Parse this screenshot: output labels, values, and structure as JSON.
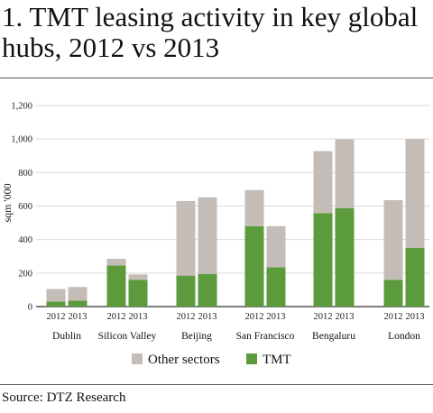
{
  "page": {
    "title": "1. TMT leasing activity in key global hubs, 2012 vs 2013",
    "source": "Source: DTZ Research"
  },
  "chart_data": {
    "type": "bar",
    "stacked": true,
    "title": "1. TMT leasing activity in key global hubs, 2012 vs 2013",
    "ylabel": "sqm '000",
    "ylim": [
      0,
      1200
    ],
    "yticks": [
      0,
      200,
      400,
      600,
      800,
      1000,
      1200
    ],
    "ytick_labels": [
      "0",
      "200",
      "400",
      "600",
      "800",
      "1,000",
      "1,200"
    ],
    "grid": true,
    "legend": "bottom",
    "groups": [
      "Dublin",
      "Silicon Valley",
      "Beijing",
      "San Francisco",
      "Bengaluru",
      "London"
    ],
    "years": [
      "2012",
      "2013"
    ],
    "series": [
      {
        "name": "Other sectors",
        "color": "#c4bdb7",
        "values": [
          [
            75,
            82
          ],
          [
            40,
            32
          ],
          [
            445,
            457
          ],
          [
            215,
            245
          ],
          [
            370,
            410
          ],
          [
            475,
            650
          ]
        ]
      },
      {
        "name": "TMT",
        "color": "#5b9b3c",
        "values": [
          [
            30,
            35
          ],
          [
            245,
            160
          ],
          [
            185,
            195
          ],
          [
            480,
            235
          ],
          [
            558,
            588
          ],
          [
            160,
            350
          ]
        ]
      }
    ]
  }
}
